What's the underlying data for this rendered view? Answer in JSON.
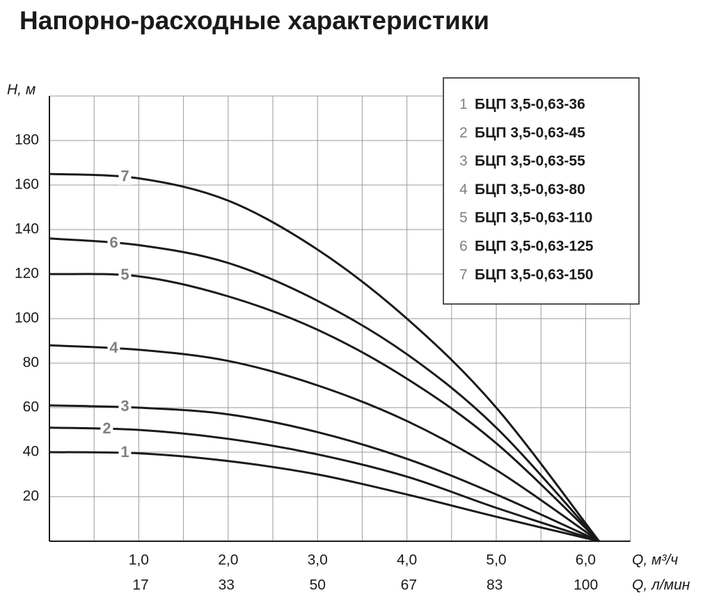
{
  "chart_data": {
    "type": "line",
    "title": "Напорно-расходные характеристики",
    "y_label": "H, м",
    "x_label": "Q, м³/ч",
    "x2_label": "Q, л/мин",
    "xlim": [
      0,
      6.5
    ],
    "ylim": [
      0,
      200
    ],
    "x2lim": [
      0,
      108.3
    ],
    "xticks": [
      {
        "value": 1,
        "label": "1,0"
      },
      {
        "value": 2,
        "label": "2,0"
      },
      {
        "value": 3,
        "label": "3,0"
      },
      {
        "value": 4,
        "label": "4,0"
      },
      {
        "value": 5,
        "label": "5,0"
      },
      {
        "value": 6,
        "label": "6,0"
      }
    ],
    "x2ticks": [
      17,
      33,
      50,
      67,
      83,
      100
    ],
    "yticks": [
      20,
      40,
      60,
      80,
      100,
      120,
      140,
      160,
      180
    ],
    "xgrid": [
      0.5,
      1,
      1.5,
      2,
      2.5,
      3,
      3.5,
      4,
      4.5,
      5,
      5.5,
      6,
      6.5
    ],
    "grid": true,
    "x": [
      0,
      1,
      2,
      3,
      4,
      5,
      6.15
    ],
    "series": [
      {
        "label": "1",
        "name": "БЦП 3,5-0,63-36",
        "color": "#1a1a1a",
        "values": [
          40,
          39.5,
          36,
          30,
          21,
          11,
          0
        ]
      },
      {
        "label": "2",
        "name": "БЦП 3,5-0,63-45",
        "color": "#1a1a1a",
        "values": [
          51,
          50,
          46,
          39,
          29,
          15,
          0
        ]
      },
      {
        "label": "3",
        "name": "БЦП 3,5-0,63-55",
        "color": "#1a1a1a",
        "values": [
          61,
          60,
          57,
          49,
          37,
          21,
          0
        ]
      },
      {
        "label": "4",
        "name": "БЦП 3,5-0,63-80",
        "color": "#1a1a1a",
        "values": [
          88,
          86,
          81,
          70,
          54,
          32,
          0
        ]
      },
      {
        "label": "5",
        "name": "БЦП 3,5-0,63-110",
        "color": "#1a1a1a",
        "values": [
          120,
          119,
          110,
          95,
          73,
          44,
          0
        ]
      },
      {
        "label": "6",
        "name": "БЦП 3,5-0,63-125",
        "color": "#1a1a1a",
        "values": [
          136,
          133,
          125,
          108,
          84,
          51,
          0
        ]
      },
      {
        "label": "7",
        "name": "БЦП 3,5-0,63-150",
        "color": "#1a1a1a",
        "values": [
          165,
          163,
          153,
          131,
          100,
          60,
          0
        ]
      }
    ]
  }
}
